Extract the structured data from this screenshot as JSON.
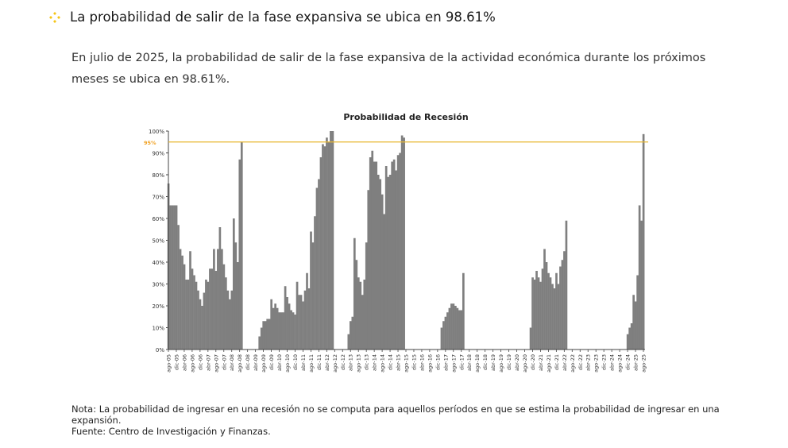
{
  "header": {
    "title": "La probabilidad de salir de la fase expansiva se ubica en 98.61%",
    "bullet_icon": "diamond-cluster-icon",
    "bullet_color": "#f5c518"
  },
  "paragraph": "En julio de 2025, la probabilidad de salir de la fase expansiva de la actividad económica durante los próximos meses se ubica en 98.61%.",
  "notes": {
    "nota": "Nota: La probabilidad de ingresar en una recesión no se computa para aquellos períodos en que se estima la probabilidad de ingresar en una expansión.",
    "fuente": "Fuente: Centro de Investigación y Finanzas."
  },
  "chart_data": {
    "type": "bar",
    "title": "Probabilidad de Recesión",
    "xlabel": "",
    "ylabel": "",
    "ylim": [
      0,
      100
    ],
    "y_ticks": [
      "0%",
      "10%",
      "20%",
      "30%",
      "40%",
      "50%",
      "60%",
      "70%",
      "80%",
      "90%",
      "100%"
    ],
    "threshold": {
      "value": 95,
      "label": "95%",
      "color": "#e8b730"
    },
    "bar_color": "#7f7f7f",
    "x_tick_labels": [
      "ago-05",
      "dic-05",
      "abr-06",
      "ago-06",
      "dic-06",
      "abr-07",
      "ago-07",
      "dic-07",
      "abr-08",
      "ago-08",
      "dic-08",
      "abr-09",
      "ago-09",
      "dic-09",
      "abr-10",
      "ago-10",
      "dic-10",
      "abr-11",
      "ago-11",
      "dic-11",
      "abr-12",
      "ago-12",
      "dic-12",
      "abr-13",
      "ago-13",
      "dic-13",
      "abr-14",
      "ago-14",
      "dic-14",
      "abr-15",
      "ago-15",
      "dic-15",
      "abr-16",
      "ago-16",
      "dic-16",
      "abr-17",
      "ago-17",
      "dic-17",
      "abr-18",
      "ago-18",
      "dic-18",
      "abr-19",
      "ago-19",
      "dic-19",
      "abr-20",
      "ago-20",
      "dic-20",
      "abr-21",
      "ago-21",
      "dic-21",
      "abr-22",
      "ago-22",
      "dic-22",
      "abr-23",
      "ago-23",
      "dic-23",
      "abr-24",
      "ago-24",
      "dic-24",
      "abr-25",
      "ago-25"
    ],
    "frequency": "monthly",
    "values": [
      76,
      66,
      66,
      66,
      66,
      57,
      46,
      43,
      39,
      32,
      32,
      45,
      37,
      34,
      31,
      27,
      23,
      20,
      26,
      32,
      31,
      37,
      37,
      46,
      36,
      46,
      56,
      46,
      39,
      33,
      27,
      23,
      27,
      60,
      49,
      40,
      87,
      95,
      null,
      null,
      null,
      null,
      null,
      null,
      null,
      null,
      6,
      10,
      13,
      13,
      14,
      14,
      23,
      19,
      21,
      19,
      17,
      17,
      17,
      29,
      24,
      21,
      18,
      17,
      16,
      31,
      25,
      25,
      22,
      27,
      35,
      28,
      54,
      49,
      61,
      74,
      78,
      88,
      94,
      93,
      97,
      95,
      100,
      100,
      null,
      null,
      null,
      null,
      null,
      null,
      null,
      7,
      13,
      15,
      51,
      41,
      33,
      31,
      25,
      32,
      49,
      73,
      88,
      91,
      86,
      86,
      80,
      78,
      71,
      62,
      84,
      79,
      80,
      86,
      87,
      82,
      89,
      90,
      98,
      97,
      null,
      null,
      null,
      null,
      null,
      null,
      null,
      null,
      null,
      null,
      null,
      null,
      null,
      null,
      null,
      null,
      null,
      null,
      10,
      13,
      15,
      17,
      19,
      21,
      21,
      20,
      19,
      18,
      18,
      35,
      null,
      null,
      null,
      null,
      null,
      null,
      null,
      null,
      null,
      null,
      null,
      null,
      null,
      null,
      null,
      null,
      null,
      null,
      null,
      null,
      null,
      null,
      null,
      null,
      null,
      null,
      null,
      null,
      null,
      null,
      null,
      null,
      null,
      10,
      33,
      32,
      36,
      33,
      31,
      37,
      46,
      40,
      35,
      33,
      30,
      28,
      35,
      30,
      38,
      41,
      45,
      59,
      null,
      null,
      null,
      null,
      null,
      null,
      null,
      null,
      null,
      null,
      null,
      null,
      null,
      null,
      null,
      null,
      null,
      null,
      null,
      null,
      null,
      null,
      null,
      null,
      null,
      null,
      null,
      null,
      null,
      null,
      7,
      10,
      12,
      25,
      22,
      34,
      66,
      59,
      98.61
    ]
  }
}
